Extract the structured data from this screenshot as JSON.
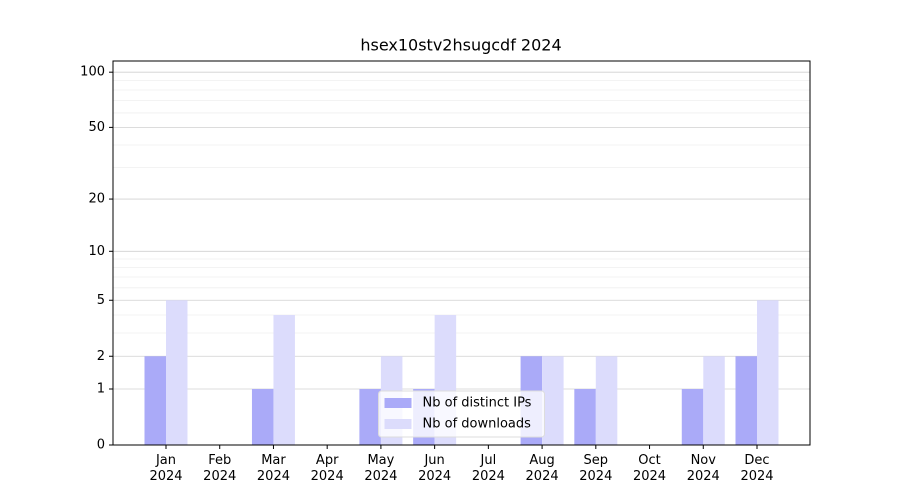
{
  "chart_data": {
    "type": "bar",
    "title": "hsex10stv2hsugcdf 2024",
    "categories": [
      "Jan 2024",
      "Feb 2024",
      "Mar 2024",
      "Apr 2024",
      "May 2024",
      "Jun 2024",
      "Jul 2024",
      "Aug 2024",
      "Sep 2024",
      "Oct 2024",
      "Nov 2024",
      "Dec 2024"
    ],
    "series": [
      {
        "name": "Nb of distinct IPs",
        "color": "#aaaaf8",
        "values": [
          2,
          0,
          1,
          0,
          1,
          1,
          0,
          2,
          1,
          0,
          1,
          2
        ]
      },
      {
        "name": "Nb of downloads",
        "color": "#dcdcfc",
        "values": [
          5,
          0,
          4,
          0,
          2,
          4,
          0,
          2,
          2,
          0,
          2,
          5
        ]
      }
    ],
    "yscale": "log1p",
    "ylim": [
      0,
      115
    ],
    "yticks": [
      0,
      1,
      2,
      5,
      10,
      20,
      50,
      100
    ],
    "yminorticks": [
      3,
      4,
      6,
      7,
      8,
      9,
      30,
      40,
      60,
      70,
      80,
      90
    ],
    "grid": true,
    "legend": "lower center"
  }
}
